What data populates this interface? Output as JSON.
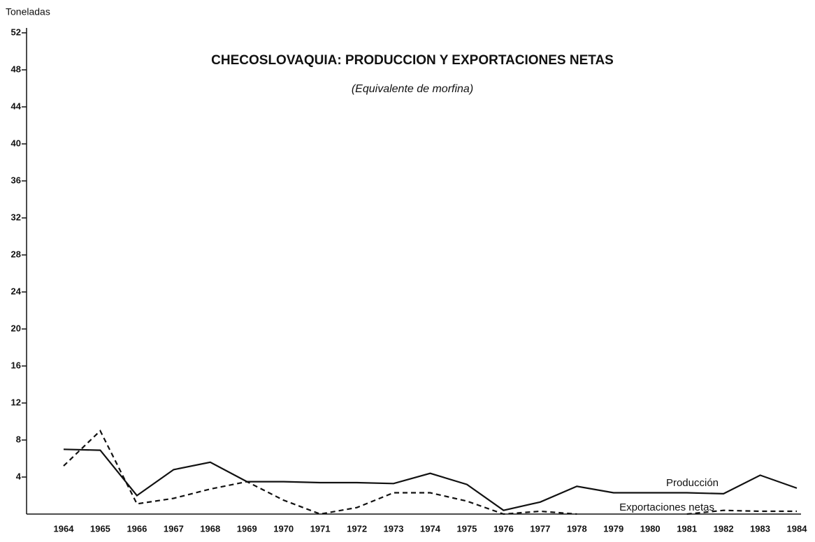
{
  "chart_data": {
    "type": "line",
    "title": "CHECOSLOVAQUIA: PRODUCCION Y EXPORTACIONES NETAS",
    "subtitle": "(Equivalente de morfina)",
    "y_label": "Toneladas",
    "categories": [
      "1964",
      "1965",
      "1966",
      "1967",
      "1968",
      "1969",
      "1970",
      "1971",
      "1972",
      "1973",
      "1974",
      "1975",
      "1976",
      "1977",
      "1978",
      "1979",
      "1980",
      "1981",
      "1982",
      "1983",
      "1984"
    ],
    "series": [
      {
        "name": "Producción",
        "color": "#111111",
        "dash": false,
        "values": [
          7.0,
          6.9,
          2.0,
          4.8,
          5.6,
          3.5,
          3.5,
          3.4,
          3.4,
          3.3,
          4.4,
          3.2,
          0.4,
          1.3,
          3.0,
          2.3,
          2.3,
          2.3,
          2.2,
          4.2,
          2.8
        ]
      },
      {
        "name": "Exportaciones netas",
        "color": "#111111",
        "dash": true,
        "values": [
          5.2,
          9.0,
          1.1,
          1.7,
          2.7,
          3.5,
          1.5,
          0,
          0.7,
          2.3,
          2.3,
          1.4,
          0,
          0.3,
          0,
          null,
          null,
          0,
          0.4,
          0.3,
          0.3
        ]
      }
    ],
    "ylim": [
      0,
      52
    ],
    "yticks": [
      4,
      8,
      12,
      16,
      20,
      24,
      28,
      32,
      36,
      40,
      44,
      48,
      52
    ],
    "grid": false
  }
}
